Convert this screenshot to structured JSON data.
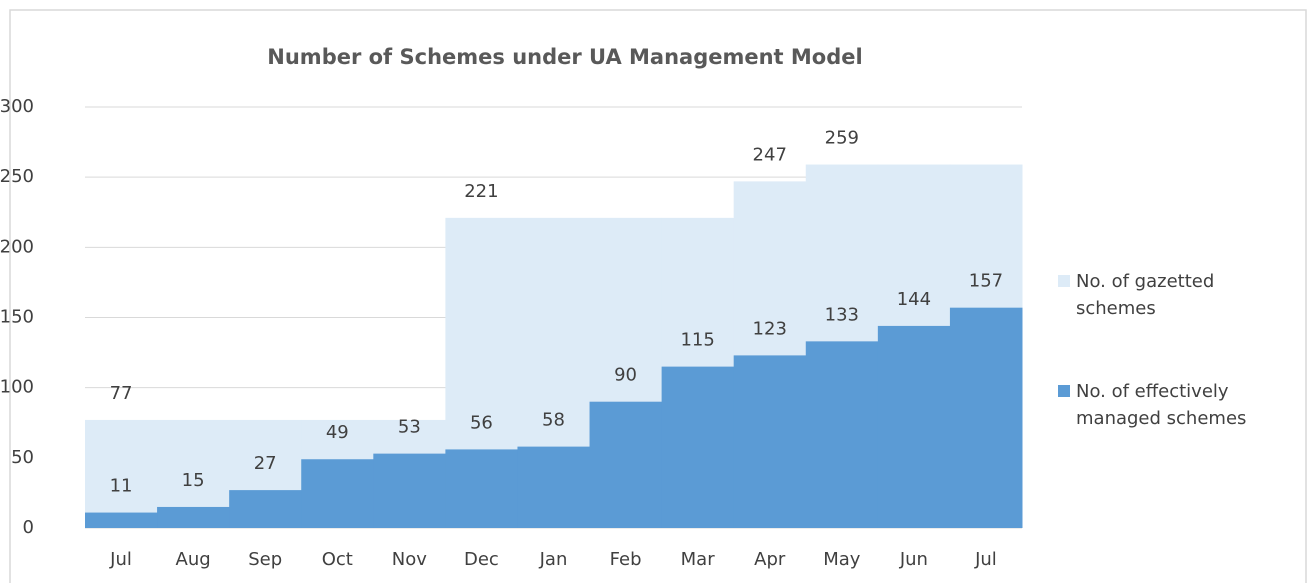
{
  "chart_data": {
    "type": "step-area",
    "title": "Number of Schemes under UA Management Model",
    "categories": [
      "Jul",
      "Aug",
      "Sep",
      "Oct",
      "Nov",
      "Dec",
      "Jan",
      "Feb",
      "Mar",
      "Apr",
      "May",
      "Jun",
      "Jul"
    ],
    "series": [
      {
        "name": "No. of gazetted schemes",
        "color": "#ddebf7",
        "values": [
          77,
          77,
          77,
          77,
          77,
          221,
          221,
          221,
          221,
          247,
          259,
          259,
          259
        ],
        "value_labels": [
          "77",
          null,
          null,
          null,
          null,
          "221",
          null,
          null,
          null,
          "247",
          "259",
          null,
          null
        ]
      },
      {
        "name": "No. of effectively managed schemes",
        "color": "#5b9bd5",
        "values": [
          11,
          15,
          27,
          49,
          53,
          56,
          58,
          90,
          115,
          123,
          133,
          144,
          157
        ]
      }
    ],
    "ylim": [
      0,
      300
    ],
    "yticks": [
      0,
      50,
      100,
      150,
      200,
      250,
      300
    ],
    "grid": true,
    "legend": "right"
  }
}
